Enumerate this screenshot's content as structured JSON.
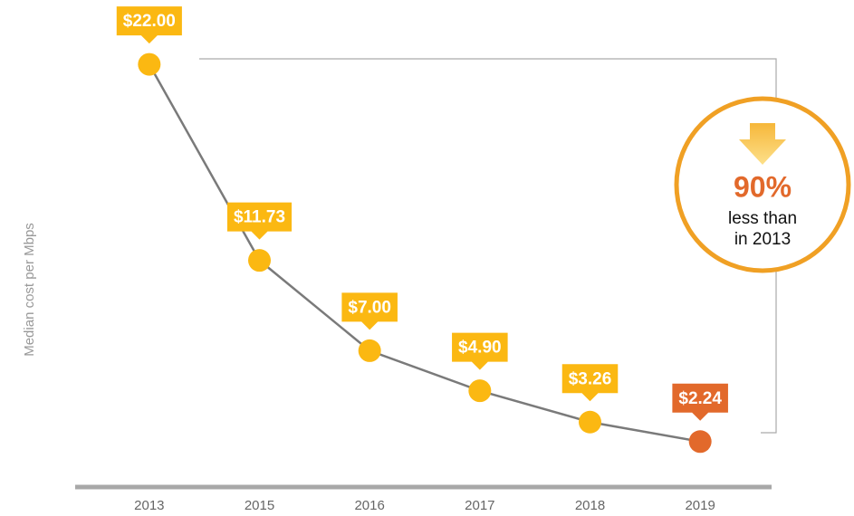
{
  "chart_data": {
    "type": "line",
    "y_label": "Median cost per Mbps",
    "categories": [
      "2013",
      "2015",
      "2016",
      "2017",
      "2018",
      "2019"
    ],
    "values": [
      22,
      11.73,
      7,
      4.9,
      3.26,
      2.24
    ],
    "value_labels": [
      "$22.00",
      "$11.73",
      "$7.00",
      "$4.90",
      "$3.26",
      "$2.24"
    ],
    "line_color": "#7a7a7a",
    "point_colors": [
      "#fbb812",
      "#fbb812",
      "#fbb812",
      "#fbb812",
      "#fbb812",
      "#e2692b"
    ],
    "ylim": [
      0,
      23
    ],
    "annotation": {
      "value": "90%",
      "lines": [
        "less than",
        "in 2013"
      ]
    }
  }
}
